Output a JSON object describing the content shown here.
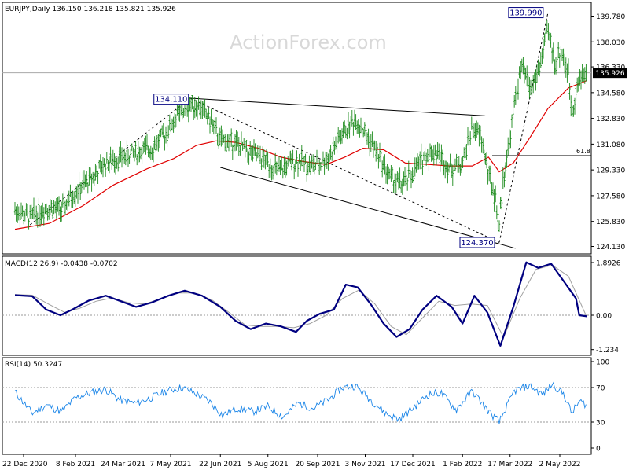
{
  "watermark": "ActionForex.com",
  "colors": {
    "price": "#1a8a1a",
    "ma": "#e00000",
    "macd": "#000080",
    "signal": "#a0a0a0",
    "rsi": "#1c86e8",
    "trend": "#000000",
    "box": "#000080"
  },
  "chart_data": [
    {
      "type": "ohlc",
      "title": "EURJPY,Daily",
      "ohlc_readout": [
        "136.150",
        "136.218",
        "135.821",
        "135.926"
      ],
      "current_price": 135.926,
      "current_price_label": "135.926",
      "ylim": [
        123.5,
        141.3
      ],
      "yticks": [
        "139.780",
        "138.030",
        "136.330",
        "134.580",
        "132.830",
        "131.080",
        "129.330",
        "127.580",
        "125.830",
        "124.130"
      ],
      "xticks": [
        "22 Dec 2020",
        "8 Feb 2021",
        "24 Mar 2021",
        "7 May 2021",
        "22 Jun 2021",
        "5 Aug 2021",
        "20 Sep 2021",
        "3 Nov 2021",
        "17 Dec 2021",
        "1 Feb 2022",
        "17 Mar 2022",
        "2 May 2022"
      ],
      "annotations": [
        {
          "label": "139.990",
          "date": "2022-04-21",
          "value": 139.99
        },
        {
          "label": "134.110",
          "date": "2021-05-25",
          "value": 134.11
        },
        {
          "label": "124.370",
          "date": "2022-03-07",
          "value": 124.37
        }
      ],
      "fib": {
        "label": "61.8",
        "value": 130.3
      },
      "trendlines": [
        {
          "style": "solid",
          "from": [
            "2021-05-25",
            134.2
          ],
          "to": [
            "2022-02-22",
            133.0
          ]
        },
        {
          "style": "solid",
          "from": [
            "2021-06-22",
            129.5
          ],
          "to": [
            "2022-03-22",
            124.0
          ]
        },
        {
          "style": "dashed",
          "from": [
            "2020-12-28",
            125.6
          ],
          "to": [
            "2021-05-25",
            134.2
          ]
        },
        {
          "style": "dashed",
          "from": [
            "2021-05-25",
            134.2
          ],
          "to": [
            "2022-03-07",
            124.4
          ]
        },
        {
          "style": "dashed",
          "from": [
            "2022-03-07",
            124.4
          ],
          "to": [
            "2022-04-21",
            140.0
          ]
        }
      ],
      "price_path": [
        [
          "2020-12-14",
          126.6
        ],
        [
          "2020-12-28",
          126.1
        ],
        [
          "2021-01-12",
          126.8
        ],
        [
          "2021-01-26",
          126.6
        ],
        [
          "2021-02-08",
          127.9
        ],
        [
          "2021-02-22",
          128.7
        ],
        [
          "2021-03-08",
          129.8
        ],
        [
          "2021-03-22",
          130.2
        ],
        [
          "2021-04-05",
          130.5
        ],
        [
          "2021-04-19",
          130.8
        ],
        [
          "2021-05-03",
          131.8
        ],
        [
          "2021-05-13",
          133.0
        ],
        [
          "2021-05-25",
          133.8
        ],
        [
          "2021-06-03",
          133.6
        ],
        [
          "2021-06-12",
          132.8
        ],
        [
          "2021-06-22",
          131.3
        ],
        [
          "2021-07-05",
          131.2
        ],
        [
          "2021-07-19",
          130.5
        ],
        [
          "2021-08-02",
          130.0
        ],
        [
          "2021-08-16",
          129.2
        ],
        [
          "2021-08-25",
          129.8
        ],
        [
          "2021-09-03",
          130.0
        ],
        [
          "2021-09-13",
          129.6
        ],
        [
          "2021-09-22",
          129.7
        ],
        [
          "2021-10-01",
          130.3
        ],
        [
          "2021-10-13",
          131.8
        ],
        [
          "2021-10-25",
          132.8
        ],
        [
          "2021-11-05",
          131.6
        ],
        [
          "2021-11-17",
          130.1
        ],
        [
          "2021-11-26",
          128.8
        ],
        [
          "2021-12-07",
          128.3
        ],
        [
          "2021-12-17",
          129.1
        ],
        [
          "2021-12-28",
          130.3
        ],
        [
          "2022-01-07",
          130.6
        ],
        [
          "2022-01-21",
          129.4
        ],
        [
          "2022-02-01",
          129.8
        ],
        [
          "2022-02-10",
          132.3
        ],
        [
          "2022-02-18",
          131.5
        ],
        [
          "2022-02-25",
          129.1
        ],
        [
          "2022-03-03",
          127.5
        ],
        [
          "2022-03-07",
          125.6
        ],
        [
          "2022-03-11",
          128.9
        ],
        [
          "2022-03-17",
          131.5
        ],
        [
          "2022-03-22",
          134.3
        ],
        [
          "2022-03-28",
          136.3
        ],
        [
          "2022-04-05",
          134.8
        ],
        [
          "2022-04-12",
          136.0
        ],
        [
          "2022-04-21",
          138.8
        ],
        [
          "2022-04-28",
          136.5
        ],
        [
          "2022-05-03",
          137.5
        ],
        [
          "2022-05-10",
          135.8
        ],
        [
          "2022-05-13",
          133.3
        ],
        [
          "2022-05-18",
          134.9
        ],
        [
          "2022-05-24",
          136.1
        ],
        [
          "2022-05-27",
          135.9
        ]
      ],
      "ma_path": [
        [
          "2020-12-14",
          125.3
        ],
        [
          "2021-01-15",
          125.7
        ],
        [
          "2021-02-15",
          126.9
        ],
        [
          "2021-03-15",
          128.3
        ],
        [
          "2021-04-15",
          129.4
        ],
        [
          "2021-05-10",
          130.1
        ],
        [
          "2021-05-31",
          131.0
        ],
        [
          "2021-06-18",
          131.3
        ],
        [
          "2021-07-06",
          131.2
        ],
        [
          "2021-07-27",
          130.8
        ],
        [
          "2021-08-17",
          130.2
        ],
        [
          "2021-09-07",
          129.9
        ],
        [
          "2021-09-28",
          129.7
        ],
        [
          "2021-10-15",
          130.2
        ],
        [
          "2021-11-01",
          130.8
        ],
        [
          "2021-11-20",
          130.7
        ],
        [
          "2021-12-10",
          129.8
        ],
        [
          "2021-12-31",
          129.7
        ],
        [
          "2022-01-20",
          129.6
        ],
        [
          "2022-02-10",
          129.6
        ],
        [
          "2022-02-25",
          130.2
        ],
        [
          "2022-03-07",
          129.2
        ],
        [
          "2022-03-20",
          129.8
        ],
        [
          "2022-04-05",
          131.6
        ],
        [
          "2022-04-21",
          133.5
        ],
        [
          "2022-05-10",
          134.9
        ],
        [
          "2022-05-27",
          135.4
        ]
      ]
    },
    {
      "type": "line",
      "title": "MACD(12,26,9)",
      "readout": [
        "-0.0438",
        "-0.0702"
      ],
      "yticks": [
        "1.8926",
        "0.00",
        "-1.234"
      ],
      "ylim": [
        -1.45,
        2.2
      ],
      "series": [
        {
          "role": "macd",
          "points": [
            [
              "2020-12-14",
              0.72
            ],
            [
              "2020-12-30",
              0.68
            ],
            [
              "2021-01-12",
              0.2
            ],
            [
              "2021-01-25",
              0.0
            ],
            [
              "2021-02-05",
              0.2
            ],
            [
              "2021-02-20",
              0.52
            ],
            [
              "2021-03-08",
              0.7
            ],
            [
              "2021-03-22",
              0.5
            ],
            [
              "2021-04-05",
              0.3
            ],
            [
              "2021-04-19",
              0.45
            ],
            [
              "2021-05-05",
              0.7
            ],
            [
              "2021-05-20",
              0.88
            ],
            [
              "2021-06-05",
              0.7
            ],
            [
              "2021-06-22",
              0.3
            ],
            [
              "2021-07-06",
              -0.2
            ],
            [
              "2021-07-20",
              -0.5
            ],
            [
              "2021-08-03",
              -0.3
            ],
            [
              "2021-08-17",
              -0.4
            ],
            [
              "2021-08-31",
              -0.6
            ],
            [
              "2021-09-10",
              -0.2
            ],
            [
              "2021-09-22",
              0.05
            ],
            [
              "2021-10-05",
              0.2
            ],
            [
              "2021-10-16",
              1.1
            ],
            [
              "2021-10-27",
              1.0
            ],
            [
              "2021-11-08",
              0.4
            ],
            [
              "2021-11-20",
              -0.3
            ],
            [
              "2021-12-02",
              -0.78
            ],
            [
              "2021-12-14",
              -0.5
            ],
            [
              "2021-12-26",
              0.2
            ],
            [
              "2022-01-08",
              0.7
            ],
            [
              "2022-01-22",
              0.3
            ],
            [
              "2022-02-01",
              -0.3
            ],
            [
              "2022-02-12",
              0.7
            ],
            [
              "2022-02-24",
              0.1
            ],
            [
              "2022-03-08",
              -1.1
            ],
            [
              "2022-03-20",
              0.3
            ],
            [
              "2022-04-01",
              1.9
            ],
            [
              "2022-04-12",
              1.7
            ],
            [
              "2022-04-24",
              1.85
            ],
            [
              "2022-05-06",
              1.2
            ],
            [
              "2022-05-17",
              0.6
            ],
            [
              "2022-05-20",
              0.0
            ],
            [
              "2022-05-27",
              -0.04
            ]
          ]
        },
        {
          "role": "signal",
          "points": [
            [
              "2020-12-14",
              0.74
            ],
            [
              "2020-12-30",
              0.72
            ],
            [
              "2021-01-14",
              0.4
            ],
            [
              "2021-01-29",
              0.1
            ],
            [
              "2021-02-12",
              0.25
            ],
            [
              "2021-02-27",
              0.5
            ],
            [
              "2021-03-14",
              0.62
            ],
            [
              "2021-03-29",
              0.45
            ],
            [
              "2021-04-13",
              0.4
            ],
            [
              "2021-04-28",
              0.6
            ],
            [
              "2021-05-14",
              0.8
            ],
            [
              "2021-05-29",
              0.8
            ],
            [
              "2021-06-14",
              0.55
            ],
            [
              "2021-06-30",
              0.1
            ],
            [
              "2021-07-15",
              -0.35
            ],
            [
              "2021-07-30",
              -0.4
            ],
            [
              "2021-08-14",
              -0.4
            ],
            [
              "2021-08-29",
              -0.45
            ],
            [
              "2021-09-13",
              -0.3
            ],
            [
              "2021-09-28",
              0.0
            ],
            [
              "2021-10-13",
              0.6
            ],
            [
              "2021-10-28",
              0.9
            ],
            [
              "2021-11-12",
              0.4
            ],
            [
              "2021-11-27",
              -0.4
            ],
            [
              "2021-12-11",
              -0.7
            ],
            [
              "2021-12-26",
              -0.1
            ],
            [
              "2022-01-10",
              0.5
            ],
            [
              "2022-01-25",
              0.35
            ],
            [
              "2022-02-09",
              0.4
            ],
            [
              "2022-02-24",
              0.35
            ],
            [
              "2022-03-11",
              -0.8
            ],
            [
              "2022-03-26",
              0.6
            ],
            [
              "2022-04-10",
              1.65
            ],
            [
              "2022-04-25",
              1.8
            ],
            [
              "2022-05-10",
              1.4
            ],
            [
              "2022-05-27",
              -0.07
            ]
          ]
        }
      ]
    },
    {
      "type": "line",
      "title": "RSI(14)",
      "readout": "50.3247",
      "yticks": [
        "100",
        "70",
        "30",
        "0"
      ],
      "ylim": [
        0,
        100
      ],
      "levels": [
        70,
        30
      ],
      "series": [
        {
          "role": "rsi",
          "points": [
            [
              "2020-12-14",
              65
            ],
            [
              "2020-12-30",
              40
            ],
            [
              "2021-01-12",
              50
            ],
            [
              "2021-01-26",
              42
            ],
            [
              "2021-02-08",
              58
            ],
            [
              "2021-02-22",
              64
            ],
            [
              "2021-03-08",
              68
            ],
            [
              "2021-03-22",
              55
            ],
            [
              "2021-04-05",
              52
            ],
            [
              "2021-04-19",
              58
            ],
            [
              "2021-05-03",
              66
            ],
            [
              "2021-05-17",
              70
            ],
            [
              "2021-05-29",
              64
            ],
            [
              "2021-06-12",
              54
            ],
            [
              "2021-06-24",
              38
            ],
            [
              "2021-07-08",
              46
            ],
            [
              "2021-07-22",
              42
            ],
            [
              "2021-08-05",
              48
            ],
            [
              "2021-08-19",
              36
            ],
            [
              "2021-09-02",
              52
            ],
            [
              "2021-09-16",
              46
            ],
            [
              "2021-09-30",
              56
            ],
            [
              "2021-10-13",
              70
            ],
            [
              "2021-10-25",
              72
            ],
            [
              "2021-11-08",
              56
            ],
            [
              "2021-11-22",
              40
            ],
            [
              "2021-12-04",
              33
            ],
            [
              "2021-12-17",
              46
            ],
            [
              "2021-12-31",
              62
            ],
            [
              "2022-01-12",
              64
            ],
            [
              "2022-01-26",
              44
            ],
            [
              "2022-02-10",
              66
            ],
            [
              "2022-02-24",
              44
            ],
            [
              "2022-03-07",
              30
            ],
            [
              "2022-03-21",
              66
            ],
            [
              "2022-04-04",
              72
            ],
            [
              "2022-04-16",
              62
            ],
            [
              "2022-04-25",
              74
            ],
            [
              "2022-05-06",
              62
            ],
            [
              "2022-05-13",
              40
            ],
            [
              "2022-05-20",
              54
            ],
            [
              "2022-05-27",
              50
            ]
          ]
        }
      ]
    }
  ]
}
